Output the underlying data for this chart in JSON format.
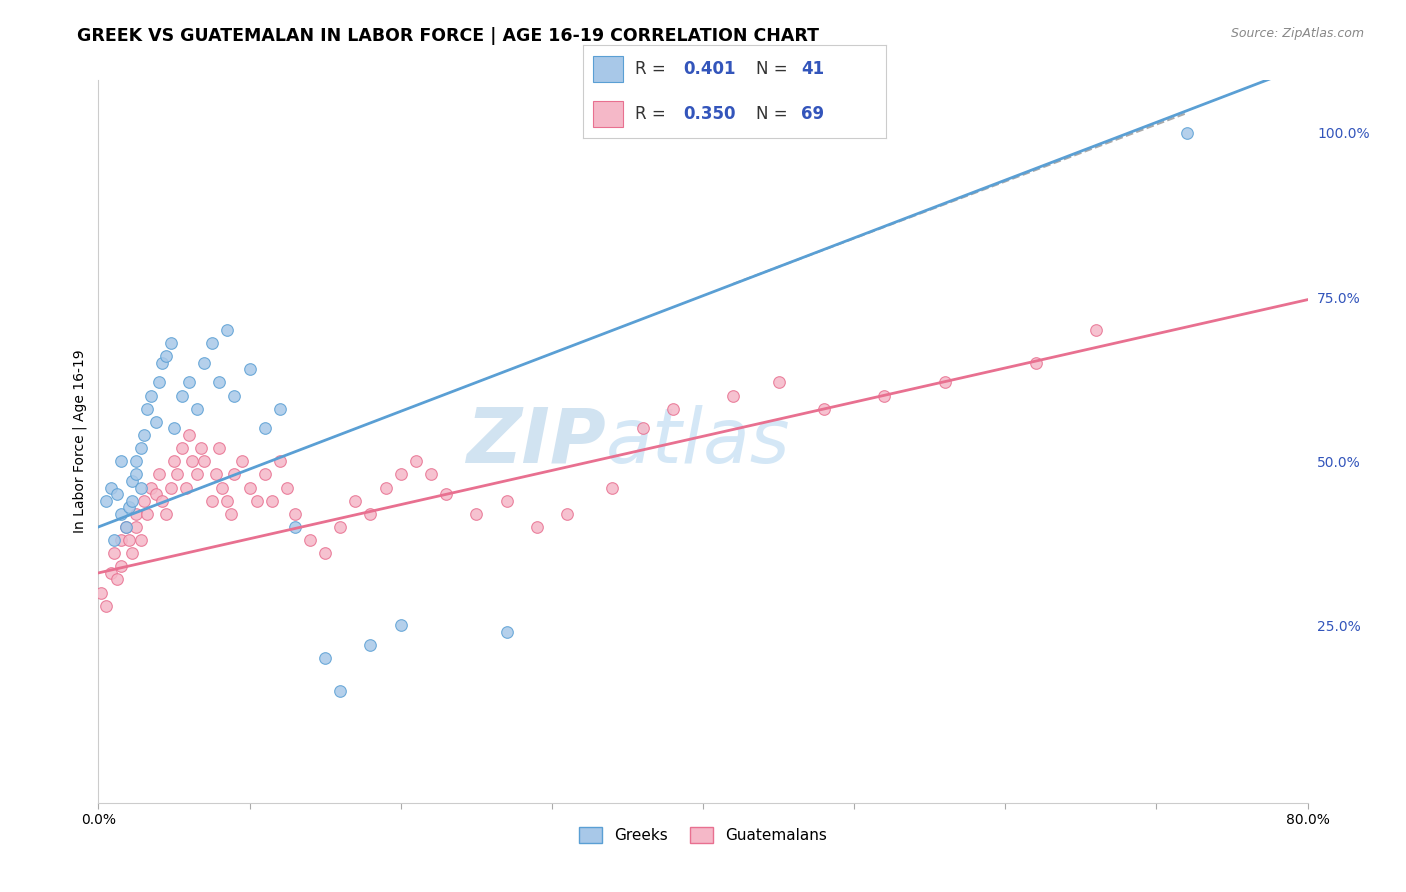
{
  "title": "GREEK VS GUATEMALAN IN LABOR FORCE | AGE 16-19 CORRELATION CHART",
  "source": "Source: ZipAtlas.com",
  "ylabel": "In Labor Force | Age 16-19",
  "x_min": 0.0,
  "x_max": 0.8,
  "y_min": -0.02,
  "y_max": 1.08,
  "x_ticks": [
    0.0,
    0.1,
    0.2,
    0.3,
    0.4,
    0.5,
    0.6,
    0.7,
    0.8
  ],
  "y_tick_labels_right": [
    "100.0%",
    "75.0%",
    "50.0%",
    "25.0%"
  ],
  "y_tick_vals_right": [
    1.0,
    0.75,
    0.5,
    0.25
  ],
  "watermark_zip": "ZIP",
  "watermark_atlas": "atlas",
  "greek_color": "#a8c8e8",
  "guatemalan_color": "#f5b8c8",
  "greek_edge_color": "#5a9fd4",
  "guatemalan_edge_color": "#e87090",
  "greek_line_color": "#5a9fd4",
  "guatemalan_line_color": "#e87090",
  "legend_blue": "#3355bb",
  "greek_R": 0.401,
  "greek_N": 41,
  "guatemalan_R": 0.35,
  "guatemalan_N": 69,
  "greek_line_intercept": 0.4,
  "greek_line_slope": 0.88,
  "guatemalan_line_intercept": 0.33,
  "guatemalan_line_slope": 0.52,
  "background_color": "#ffffff",
  "grid_color": "#e0e0e0",
  "title_fontsize": 12.5,
  "axis_label_fontsize": 10,
  "tick_fontsize": 10,
  "watermark_fontsize_zip": 55,
  "watermark_fontsize_atlas": 55,
  "watermark_color": "#cce0f0",
  "greek_scatter_x": [
    0.005,
    0.008,
    0.01,
    0.012,
    0.015,
    0.015,
    0.018,
    0.02,
    0.022,
    0.022,
    0.025,
    0.025,
    0.028,
    0.028,
    0.03,
    0.032,
    0.035,
    0.038,
    0.04,
    0.042,
    0.045,
    0.048,
    0.05,
    0.055,
    0.06,
    0.065,
    0.07,
    0.075,
    0.08,
    0.085,
    0.09,
    0.1,
    0.11,
    0.12,
    0.13,
    0.15,
    0.16,
    0.18,
    0.2,
    0.27,
    0.72
  ],
  "greek_scatter_y": [
    0.44,
    0.46,
    0.38,
    0.45,
    0.42,
    0.5,
    0.4,
    0.43,
    0.47,
    0.44,
    0.5,
    0.48,
    0.46,
    0.52,
    0.54,
    0.58,
    0.6,
    0.56,
    0.62,
    0.65,
    0.66,
    0.68,
    0.55,
    0.6,
    0.62,
    0.58,
    0.65,
    0.68,
    0.62,
    0.7,
    0.6,
    0.64,
    0.55,
    0.58,
    0.4,
    0.2,
    0.15,
    0.22,
    0.25,
    0.24,
    1.0
  ],
  "guatemalan_scatter_x": [
    0.002,
    0.005,
    0.008,
    0.01,
    0.012,
    0.015,
    0.015,
    0.018,
    0.02,
    0.022,
    0.025,
    0.025,
    0.028,
    0.03,
    0.032,
    0.035,
    0.038,
    0.04,
    0.042,
    0.045,
    0.048,
    0.05,
    0.052,
    0.055,
    0.058,
    0.06,
    0.062,
    0.065,
    0.068,
    0.07,
    0.075,
    0.078,
    0.08,
    0.082,
    0.085,
    0.088,
    0.09,
    0.095,
    0.1,
    0.105,
    0.11,
    0.115,
    0.12,
    0.125,
    0.13,
    0.14,
    0.15,
    0.16,
    0.17,
    0.18,
    0.19,
    0.2,
    0.21,
    0.22,
    0.23,
    0.25,
    0.27,
    0.29,
    0.31,
    0.34,
    0.36,
    0.38,
    0.42,
    0.45,
    0.48,
    0.52,
    0.56,
    0.62,
    0.66
  ],
  "guatemalan_scatter_y": [
    0.3,
    0.28,
    0.33,
    0.36,
    0.32,
    0.38,
    0.34,
    0.4,
    0.38,
    0.36,
    0.42,
    0.4,
    0.38,
    0.44,
    0.42,
    0.46,
    0.45,
    0.48,
    0.44,
    0.42,
    0.46,
    0.5,
    0.48,
    0.52,
    0.46,
    0.54,
    0.5,
    0.48,
    0.52,
    0.5,
    0.44,
    0.48,
    0.52,
    0.46,
    0.44,
    0.42,
    0.48,
    0.5,
    0.46,
    0.44,
    0.48,
    0.44,
    0.5,
    0.46,
    0.42,
    0.38,
    0.36,
    0.4,
    0.44,
    0.42,
    0.46,
    0.48,
    0.5,
    0.48,
    0.45,
    0.42,
    0.44,
    0.4,
    0.42,
    0.46,
    0.55,
    0.58,
    0.6,
    0.62,
    0.58,
    0.6,
    0.62,
    0.65,
    0.7
  ],
  "dashed_line_x": [
    0.42,
    0.72
  ],
  "dashed_line_y": [
    0.77,
    1.03
  ]
}
